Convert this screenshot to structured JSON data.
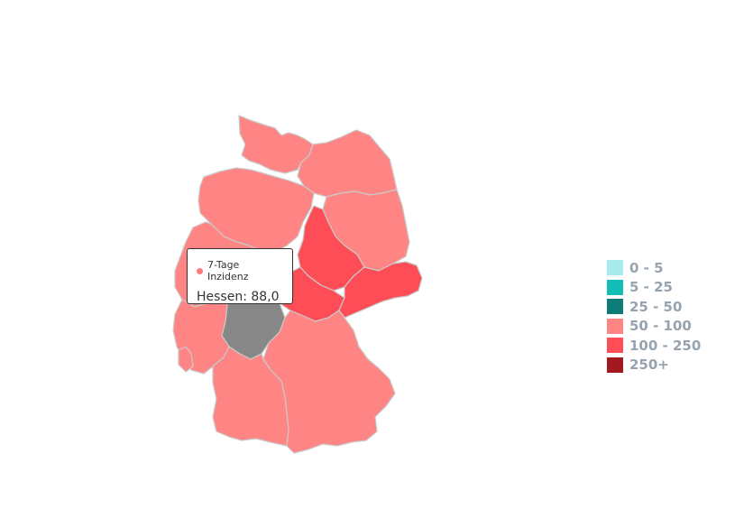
{
  "tooltip": {
    "series_name": "7-Tage Inzidenz",
    "text": "Hessen: 88,0",
    "dot_color": "#ff7b7b"
  },
  "legend": {
    "items": [
      {
        "label": "0 - 5",
        "color": "#a6ebeb"
      },
      {
        "label": "5 - 25",
        "color": "#12bdb6"
      },
      {
        "label": "25 - 50",
        "color": "#0d7c78"
      },
      {
        "label": "50 - 100",
        "color": "#ff8484"
      },
      {
        "label": "100 - 250",
        "color": "#ff4d57"
      },
      {
        "label": "250+",
        "color": "#a3181f"
      }
    ]
  },
  "regions": [
    {
      "name": "Schleswig-Holstein",
      "class": "50 - 100",
      "color": "#ff8484"
    },
    {
      "name": "Mecklenburg-Vorpommern",
      "class": "50 - 100",
      "color": "#ff8484"
    },
    {
      "name": "Niedersachsen",
      "class": "50 - 100",
      "color": "#ff8484"
    },
    {
      "name": "Brandenburg",
      "class": "50 - 100",
      "color": "#ff8484"
    },
    {
      "name": "Sachsen-Anhalt",
      "class": "100 - 250",
      "color": "#ff4d57"
    },
    {
      "name": "Nordrhein-Westfalen",
      "class": "50 - 100",
      "color": "#ff8484"
    },
    {
      "name": "Thüringen",
      "class": "100 - 250",
      "color": "#ff4d57"
    },
    {
      "name": "Sachsen",
      "class": "100 - 250",
      "color": "#ff4d57"
    },
    {
      "name": "Hessen",
      "class": "selected",
      "value": 88.0,
      "color": "#878787"
    },
    {
      "name": "Rheinland-Pfalz",
      "class": "50 - 100",
      "color": "#ff8484"
    },
    {
      "name": "Saarland",
      "class": "50 - 100",
      "color": "#ff8484"
    },
    {
      "name": "Bayern",
      "class": "50 - 100",
      "color": "#ff8484"
    },
    {
      "name": "Baden-Württemberg",
      "class": "50 - 100",
      "color": "#ff8484"
    }
  ]
}
